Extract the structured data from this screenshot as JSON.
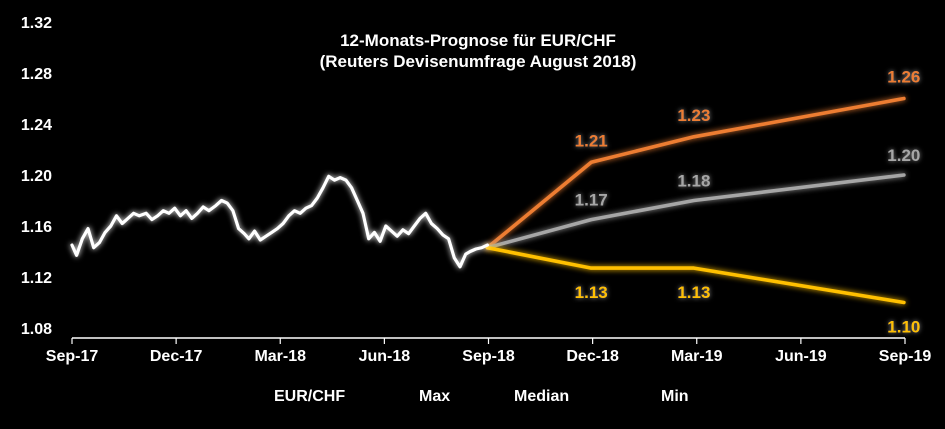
{
  "chart_data": {
    "type": "line",
    "title": "12-Monats-Prognose für EUR/CHF",
    "subtitle": "(Reuters Devisenumfrage August 2018)",
    "xlabel": "",
    "ylabel": "",
    "x_ticks": [
      "Sep-17",
      "Dec-17",
      "Mar-18",
      "Jun-18",
      "Sep-18",
      "Dec-18",
      "Mar-19",
      "Jun-19",
      "Sep-19"
    ],
    "y_ticks": [
      "1.32",
      "1.28",
      "1.24",
      "1.20",
      "1.16",
      "1.12",
      "1.08"
    ],
    "ylim": [
      1.08,
      1.32
    ],
    "grid": false,
    "legend_position": "bottom",
    "colors": {
      "EUR/CHF": "#ffffff",
      "Max": "#ed7d31",
      "Median": "#a6a6a6",
      "Min": "#ffc000"
    },
    "series": [
      {
        "name": "EUR/CHF",
        "x": [
          "2017-09-01",
          "2017-09-05",
          "2017-09-10",
          "2017-09-15",
          "2017-09-20",
          "2017-09-25",
          "2017-09-30",
          "2017-10-05",
          "2017-10-10",
          "2017-10-15",
          "2017-10-20",
          "2017-10-25",
          "2017-10-30",
          "2017-11-05",
          "2017-11-10",
          "2017-11-15",
          "2017-11-20",
          "2017-11-25",
          "2017-11-30",
          "2017-12-05",
          "2017-12-10",
          "2017-12-15",
          "2017-12-20",
          "2017-12-25",
          "2017-12-30",
          "2018-01-05",
          "2018-01-10",
          "2018-01-15",
          "2018-01-20",
          "2018-01-25",
          "2018-01-30",
          "2018-02-03",
          "2018-02-08",
          "2018-02-13",
          "2018-02-18",
          "2018-02-23",
          "2018-02-28",
          "2018-03-05",
          "2018-03-10",
          "2018-03-15",
          "2018-03-20",
          "2018-03-25",
          "2018-03-30",
          "2018-04-04",
          "2018-04-09",
          "2018-04-14",
          "2018-04-19",
          "2018-04-24",
          "2018-04-29",
          "2018-05-04",
          "2018-05-09",
          "2018-05-14",
          "2018-05-19",
          "2018-05-24",
          "2018-05-29",
          "2018-06-03",
          "2018-06-08",
          "2018-06-13",
          "2018-06-18",
          "2018-06-23",
          "2018-06-28",
          "2018-07-03",
          "2018-07-08",
          "2018-07-13",
          "2018-07-18",
          "2018-07-23",
          "2018-07-28",
          "2018-08-02",
          "2018-08-07",
          "2018-08-12",
          "2018-08-16",
          "2018-08-21",
          "2018-08-26",
          "2018-08-31"
        ],
        "values": [
          1.145,
          1.137,
          1.15,
          1.158,
          1.143,
          1.147,
          1.155,
          1.16,
          1.168,
          1.162,
          1.166,
          1.17,
          1.168,
          1.17,
          1.165,
          1.168,
          1.172,
          1.17,
          1.174,
          1.168,
          1.172,
          1.166,
          1.17,
          1.175,
          1.172,
          1.176,
          1.18,
          1.178,
          1.172,
          1.158,
          1.154,
          1.15,
          1.156,
          1.149,
          1.152,
          1.155,
          1.158,
          1.162,
          1.168,
          1.172,
          1.17,
          1.174,
          1.176,
          1.182,
          1.19,
          1.199,
          1.196,
          1.198,
          1.196,
          1.19,
          1.18,
          1.17,
          1.15,
          1.155,
          1.148,
          1.16,
          1.156,
          1.152,
          1.157,
          1.154,
          1.16,
          1.166,
          1.17,
          1.162,
          1.158,
          1.153,
          1.15,
          1.135,
          1.128,
          1.138,
          1.14,
          1.142,
          1.143,
          1.145
        ]
      },
      {
        "name": "Max",
        "x": [
          "2018-08-31",
          "2018-11-30",
          "2019-02-28",
          "2019-08-31"
        ],
        "values": [
          1.143,
          1.21,
          1.23,
          1.26
        ],
        "labels": [
          "",
          "1.21",
          "1.23",
          "1.26"
        ]
      },
      {
        "name": "Median",
        "x": [
          "2018-08-31",
          "2018-11-30",
          "2019-02-28",
          "2019-08-31"
        ],
        "values": [
          1.143,
          1.165,
          1.18,
          1.2
        ],
        "labels": [
          "",
          "1.17",
          "1.18",
          "1.20"
        ]
      },
      {
        "name": "Min",
        "x": [
          "2018-08-31",
          "2018-11-30",
          "2019-02-28",
          "2019-08-31"
        ],
        "values": [
          1.143,
          1.127,
          1.127,
          1.1
        ],
        "labels": [
          "",
          "1.13",
          "1.13",
          "1.10"
        ]
      }
    ]
  }
}
